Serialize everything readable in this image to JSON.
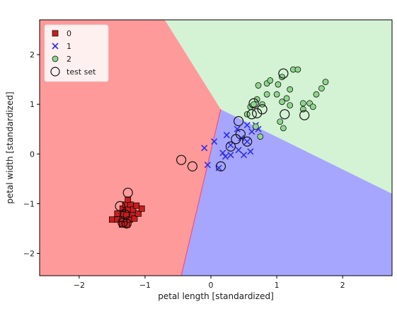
{
  "chart_data": {
    "type": "scatter",
    "xlabel": "petal length [standardized]",
    "ylabel": "petal width [standardized]",
    "xlim": [
      -2.6,
      2.75
    ],
    "ylim": [
      -2.45,
      2.7
    ],
    "xticks": [
      -2,
      -1,
      0,
      1,
      2
    ],
    "yticks": [
      -2,
      -1,
      0,
      1,
      2
    ],
    "grid": false,
    "legend_position": "top-left",
    "regions": [
      {
        "class": "0",
        "color": "#ff9a9a",
        "polygon": [
          [
            -2.6,
            2.7
          ],
          [
            -0.7,
            2.7
          ],
          [
            0.15,
            0.9
          ],
          [
            -0.45,
            -2.45
          ],
          [
            -2.6,
            -2.45
          ]
        ]
      },
      {
        "class": "1",
        "color": "#a6a6ff",
        "polygon": [
          [
            0.15,
            0.9
          ],
          [
            2.75,
            -0.8
          ],
          [
            2.75,
            -2.45
          ],
          [
            -0.45,
            -2.45
          ]
        ]
      },
      {
        "class": "2",
        "color": "#d4f2d4",
        "polygon": [
          [
            -0.7,
            2.7
          ],
          [
            2.75,
            2.7
          ],
          [
            2.75,
            -0.8
          ],
          [
            0.15,
            0.9
          ]
        ]
      }
    ],
    "boundary_color": "#ff3d6a",
    "series": [
      {
        "name": "0",
        "marker": "square",
        "color": "#c81e1e",
        "points": [
          [
            -1.5,
            -1.32
          ],
          [
            -1.42,
            -1.32
          ],
          [
            -1.42,
            -1.2
          ],
          [
            -1.35,
            -1.42
          ],
          [
            -1.34,
            -1.3
          ],
          [
            -1.34,
            -1.2
          ],
          [
            -1.34,
            -1.1
          ],
          [
            -1.3,
            -1.02
          ],
          [
            -1.28,
            -1.32
          ],
          [
            -1.28,
            -1.22
          ],
          [
            -1.27,
            -1.42
          ],
          [
            -1.25,
            -1.12
          ],
          [
            -1.23,
            -1.32
          ],
          [
            -1.22,
            -1.02
          ],
          [
            -1.2,
            -1.22
          ],
          [
            -1.18,
            -1.12
          ],
          [
            -1.16,
            -1.3
          ],
          [
            -1.13,
            -1.04
          ],
          [
            -1.26,
            -0.92
          ],
          [
            -1.1,
            -1.2
          ],
          [
            -1.05,
            -1.1
          ]
        ]
      },
      {
        "name": "1",
        "marker": "x",
        "color": "#2f2fe6",
        "points": [
          [
            -0.1,
            0.12
          ],
          [
            -0.05,
            -0.22
          ],
          [
            0.05,
            0.25
          ],
          [
            0.12,
            -0.28
          ],
          [
            0.18,
            0.02
          ],
          [
            0.24,
            0.38
          ],
          [
            0.3,
            -0.02
          ],
          [
            0.3,
            0.18
          ],
          [
            0.4,
            0.5
          ],
          [
            0.42,
            0.08
          ],
          [
            0.46,
            0.32
          ],
          [
            0.5,
            -0.02
          ],
          [
            0.55,
            0.25
          ],
          [
            0.6,
            0.05
          ],
          [
            0.62,
            0.45
          ],
          [
            0.68,
            0.58
          ],
          [
            0.72,
            0.5
          ],
          [
            0.55,
            0.58
          ],
          [
            0.22,
            -0.05
          ]
        ]
      },
      {
        "name": "2",
        "marker": "circle",
        "color": "#8fd48f",
        "points": [
          [
            0.55,
            0.8
          ],
          [
            0.6,
            0.95
          ],
          [
            0.65,
            1.0
          ],
          [
            0.7,
            1.1
          ],
          [
            0.72,
            1.38
          ],
          [
            0.78,
            1.0
          ],
          [
            0.85,
            1.2
          ],
          [
            0.85,
            1.42
          ],
          [
            0.9,
            1.48
          ],
          [
            1.0,
            1.2
          ],
          [
            1.02,
            1.4
          ],
          [
            1.08,
            1.55
          ],
          [
            1.08,
            1.05
          ],
          [
            1.15,
            1.12
          ],
          [
            1.2,
            1.3
          ],
          [
            1.2,
            0.98
          ],
          [
            1.25,
            1.7
          ],
          [
            1.32,
            1.7
          ],
          [
            1.4,
            1.02
          ],
          [
            1.4,
            0.9
          ],
          [
            1.5,
            1.02
          ],
          [
            1.55,
            0.95
          ],
          [
            1.6,
            1.2
          ],
          [
            1.68,
            1.32
          ],
          [
            1.74,
            1.45
          ],
          [
            1.1,
            0.52
          ],
          [
            1.05,
            0.65
          ],
          [
            0.75,
            0.35
          ],
          [
            0.68,
            0.55
          ]
        ]
      }
    ],
    "test_set": {
      "name": "test set",
      "marker": "open-circle",
      "edgecolor": "#111111",
      "points": [
        [
          -0.45,
          -0.12
        ],
        [
          -0.28,
          -0.25
        ],
        [
          0.15,
          -0.25
        ],
        [
          0.3,
          0.15
        ],
        [
          0.38,
          0.3
        ],
        [
          0.45,
          0.4
        ],
        [
          0.55,
          0.25
        ],
        [
          0.42,
          0.66
        ],
        [
          0.62,
          0.8
        ],
        [
          0.65,
          1.02
        ],
        [
          0.7,
          0.82
        ],
        [
          0.78,
          0.9
        ],
        [
          1.1,
          1.62
        ],
        [
          1.12,
          0.8
        ],
        [
          1.42,
          0.78
        ],
        [
          -1.26,
          -0.78
        ],
        [
          -1.38,
          -1.05
        ],
        [
          -1.34,
          -1.38
        ],
        [
          -1.28,
          -1.4
        ],
        [
          -1.3,
          -1.22
        ]
      ]
    }
  }
}
